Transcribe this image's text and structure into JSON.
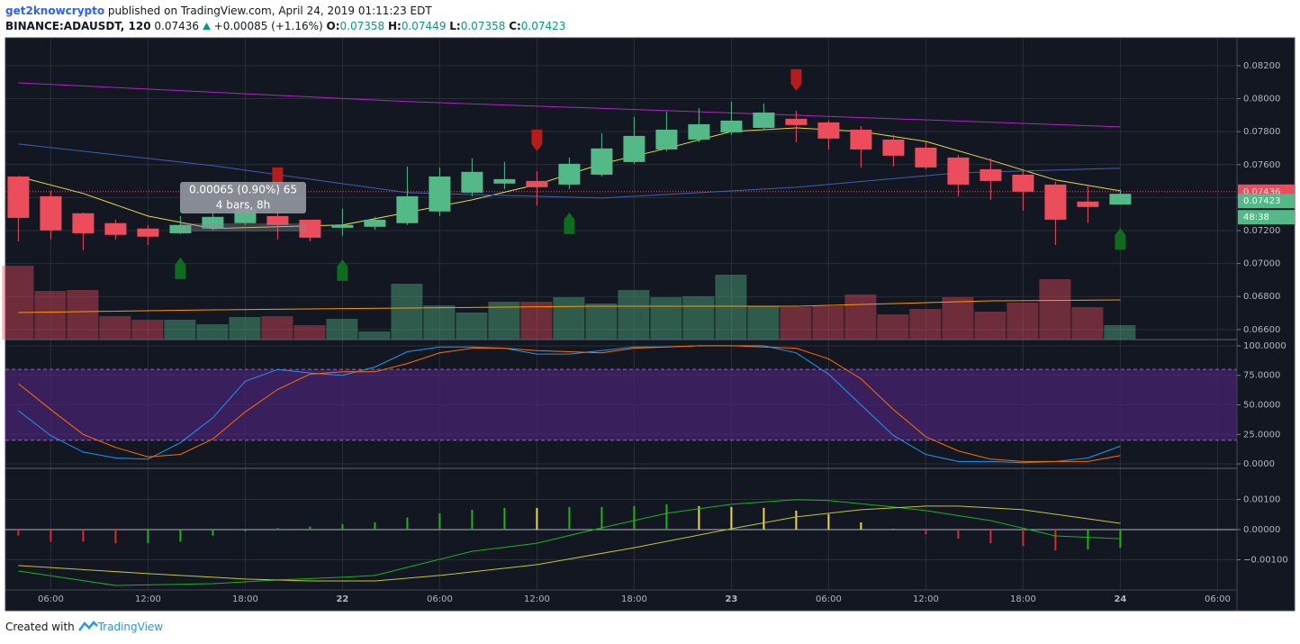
{
  "header": {
    "author": "get2knowcrypto",
    "published": "published on TradingView.com, April 24, 2019 01:11:23 EDT",
    "symbol": "BINANCE:ADAUSDT, 120",
    "price": "0.07436",
    "change": "+0.00085 (+1.16%)",
    "open_label": "O:",
    "open": "0.07358",
    "high_label": "H:",
    "high": "0.07449",
    "low_label": "L:",
    "low": "0.07358",
    "close_label": "C:",
    "close": "0.07423"
  },
  "measure": {
    "change": "0.00065 (0.90%) 65",
    "span": "4 bars, 8h"
  },
  "footer": {
    "created": "Created with",
    "brand": "TradingView"
  },
  "chart_data": [
    {
      "type": "candlestick",
      "xlim": [
        -0.4,
        37.6
      ],
      "ylim": [
        0.06539,
        0.08369
      ],
      "yticks": [
        {
          "value": 0.082,
          "label": "0.08200"
        },
        {
          "value": 0.08,
          "label": "0.08000"
        },
        {
          "value": 0.078,
          "label": "0.07800"
        },
        {
          "value": 0.076,
          "label": "0.07600"
        },
        {
          "value": 0.074,
          "label": "0.07400"
        },
        {
          "value": 0.072,
          "label": "0.07200"
        },
        {
          "value": 0.07,
          "label": "0.07000"
        },
        {
          "value": 0.068,
          "label": "0.06800"
        },
        {
          "value": 0.066,
          "label": "0.06600"
        }
      ],
      "up_color": "#53b987",
      "down_color": "#eb4d5c",
      "open": [
        0.07528,
        0.07408,
        0.07305,
        0.07245,
        0.07212,
        0.07184,
        0.07212,
        0.07245,
        0.07288,
        0.07266,
        0.07217,
        0.07223,
        0.07245,
        0.07316,
        0.0743,
        0.07485,
        0.07501,
        0.07479,
        0.07539,
        0.07616,
        0.07692,
        0.07752,
        0.07796,
        0.07823,
        0.07878,
        0.07856,
        0.07812,
        0.07752,
        0.07703,
        0.07643,
        0.07572,
        0.07539,
        0.07479,
        0.07376,
        0.07358
      ],
      "high": [
        0.07528,
        0.07441,
        0.0731,
        0.07266,
        0.07234,
        0.07288,
        0.07316,
        0.0737,
        0.07332,
        0.07266,
        0.07332,
        0.07283,
        0.07588,
        0.07583,
        0.07638,
        0.07616,
        0.07561,
        0.07643,
        0.07791,
        0.07889,
        0.07922,
        0.07943,
        0.07982,
        0.07971,
        0.07927,
        0.07867,
        0.07834,
        0.0778,
        0.07736,
        0.07659,
        0.07638,
        0.07561,
        0.07496,
        0.07479,
        0.07449
      ],
      "low": [
        0.07135,
        0.07146,
        0.07081,
        0.07146,
        0.07113,
        0.07179,
        0.07201,
        0.07234,
        0.07146,
        0.07135,
        0.07168,
        0.07206,
        0.07234,
        0.07288,
        0.07408,
        0.07452,
        0.07354,
        0.07452,
        0.07528,
        0.07605,
        0.07681,
        0.07736,
        0.0778,
        0.07812,
        0.07736,
        0.07692,
        0.07583,
        0.07588,
        0.07572,
        0.07408,
        0.07386,
        0.07321,
        0.07113,
        0.07245,
        0.07358
      ],
      "close": [
        0.07277,
        0.07201,
        0.07184,
        0.07174,
        0.07163,
        0.07234,
        0.07283,
        0.07332,
        0.07234,
        0.07157,
        0.07234,
        0.07266,
        0.07408,
        0.07528,
        0.07556,
        0.07512,
        0.07463,
        0.07605,
        0.07698,
        0.07774,
        0.07812,
        0.07845,
        0.07867,
        0.07916,
        0.0784,
        0.07758,
        0.07692,
        0.07654,
        0.07583,
        0.07479,
        0.07501,
        0.07436,
        0.07266,
        0.07343,
        0.07423
      ],
      "volume_ylim": [
        0,
        335
      ],
      "volume": [
        82,
        54,
        55,
        26,
        22,
        22,
        17,
        25,
        26,
        16,
        23,
        9,
        62,
        38,
        30,
        42,
        42,
        47,
        40,
        55,
        47,
        48,
        72,
        37,
        36,
        37,
        50,
        28,
        34,
        47,
        31,
        41,
        67,
        36,
        16
      ],
      "volume_ma": {
        "color": "#ff9800",
        "x": [
          0,
          6,
          12,
          18,
          24,
          30,
          34
        ],
        "values": [
          30,
          33,
          35,
          37,
          37,
          43,
          44
        ]
      },
      "overlays": [
        {
          "color": "#e6d84a",
          "x": [
            0,
            2,
            4,
            6,
            8,
            10,
            12,
            14,
            16,
            18,
            20,
            22,
            24,
            26,
            28,
            30,
            32,
            34
          ],
          "values": [
            0.07528,
            0.07425,
            0.07288,
            0.07212,
            0.07223,
            0.07234,
            0.0731,
            0.07386,
            0.07479,
            0.07605,
            0.07698,
            0.07801,
            0.07823,
            0.07801,
            0.07741,
            0.07627,
            0.07507,
            0.07441
          ]
        },
        {
          "color": "#3f5fb0",
          "x": [
            0,
            6,
            12,
            18,
            24,
            29,
            34
          ],
          "values": [
            0.07725,
            0.07594,
            0.0743,
            0.07397,
            0.07463,
            0.0755,
            0.07578
          ]
        },
        {
          "color": "#b025c4",
          "x": [
            0,
            12,
            24,
            34
          ],
          "values": [
            0.08096,
            0.07982,
            0.079,
            0.07829
          ]
        }
      ],
      "sell_signals": [
        8,
        16,
        24
      ],
      "buy_signals": [
        5,
        10,
        17,
        34
      ],
      "last_price": {
        "value": 0.07436,
        "label": "0.07436"
      },
      "close_tag": {
        "value": 0.07423,
        "label": "0.07423"
      },
      "countdown": "48:38"
    },
    {
      "type": "line",
      "xlim": [
        -0.4,
        37.6
      ],
      "ylim": [
        -3.8,
        105.3
      ],
      "yticks": [
        {
          "value": 100,
          "label": "100.0000"
        },
        {
          "value": 75,
          "label": "75.0000"
        },
        {
          "value": 50,
          "label": "50.0000"
        },
        {
          "value": 25,
          "label": "25.0000"
        },
        {
          "value": 0,
          "label": "0.0000"
        }
      ],
      "band": [
        20,
        80
      ],
      "band_color": "#4a2575",
      "series": [
        {
          "color": "#2196f3",
          "values": [
            45,
            24,
            10,
            5,
            4,
            18,
            39,
            70,
            80,
            77,
            75,
            82,
            95,
            99,
            99,
            98,
            93,
            93,
            96,
            99,
            99,
            100,
            100,
            100,
            94,
            76,
            50,
            24,
            8,
            2,
            2,
            1,
            2,
            5,
            15
          ]
        },
        {
          "color": "#ff6d00",
          "values": [
            68,
            46,
            25,
            14,
            6,
            8,
            21,
            44,
            63,
            76,
            78,
            78,
            85,
            94,
            98,
            98,
            96,
            95,
            94,
            98,
            99,
            100,
            100,
            99,
            98,
            89,
            72,
            46,
            23,
            11,
            4,
            2,
            2,
            2,
            7
          ]
        }
      ]
    },
    {
      "type": "macd",
      "xlim": [
        -0.4,
        37.6
      ],
      "ylim": [
        -0.002,
        0.00203
      ],
      "yticks": [
        {
          "value": 0.001,
          "label": "0.00100"
        },
        {
          "value": 0,
          "label": "0.00000"
        },
        {
          "value": -0.001,
          "label": "−0.00100"
        }
      ],
      "xticks": [
        {
          "value": 1,
          "label": "06:00"
        },
        {
          "value": 4,
          "label": "12:00"
        },
        {
          "value": 7,
          "label": "18:00"
        },
        {
          "value": 10,
          "label": "22"
        },
        {
          "value": 13,
          "label": "06:00"
        },
        {
          "value": 16,
          "label": "12:00"
        },
        {
          "value": 19,
          "label": "18:00"
        },
        {
          "value": 22,
          "label": "23"
        },
        {
          "value": 25,
          "label": "06:00"
        },
        {
          "value": 28,
          "label": "12:00"
        },
        {
          "value": 31,
          "label": "18:00"
        },
        {
          "value": 34,
          "label": "24"
        },
        {
          "value": 37,
          "label": "06:00"
        }
      ],
      "histogram": {
        "values": [
          -0.0002,
          -0.0004,
          -0.0004,
          -0.00045,
          -0.00045,
          -0.0004,
          -0.0002,
          -5e-05,
          5e-05,
          0.0001,
          0.00018,
          0.00024,
          0.0004,
          0.00054,
          0.00066,
          0.00072,
          0.00072,
          0.00075,
          0.00075,
          0.00078,
          0.00084,
          0.00078,
          0.00075,
          0.00072,
          0.00063,
          0.00051,
          0.00024,
          2e-05,
          -0.00015,
          -0.0003,
          -0.00045,
          -0.00054,
          -0.00069,
          -0.00066,
          -0.0006
        ],
        "colors": [
          "#d32f2f",
          "#d32f2f",
          "#d32f2f",
          "#d32f2f",
          "#1db11d",
          "#1db11d",
          "#1db11d",
          "#1db11d",
          "#1db11d",
          "#1db11d",
          "#1db11d",
          "#1db11d",
          "#1db11d",
          "#1db11d",
          "#1db11d",
          "#1db11d",
          "#e6d84a",
          "#1db11d",
          "#1db11d",
          "#1db11d",
          "#1db11d",
          "#e6d84a",
          "#e6d84a",
          "#e6d84a",
          "#e6d84a",
          "#e6d84a",
          "#e6d84a",
          "#e6d84a",
          "#d32f2f",
          "#d32f2f",
          "#d32f2f",
          "#d32f2f",
          "#d32f2f",
          "#1db11d",
          "#1db11d"
        ]
      },
      "series": [
        {
          "color": "#1db11d",
          "x": [
            0,
            3,
            6,
            8,
            10,
            11,
            12,
            14,
            16,
            18,
            20,
            22,
            24,
            25,
            27,
            28,
            30,
            32,
            34
          ],
          "values": [
            -0.00137,
            -0.00185,
            -0.00179,
            -0.00167,
            -0.00158,
            -0.00152,
            -0.00125,
            -0.00072,
            -0.00045,
            6e-05,
            0.00054,
            0.00084,
            0.00099,
            0.00096,
            0.00075,
            0.00063,
            0.0003,
            -0.00021,
            -0.0003
          ]
        },
        {
          "color": "#c6c33a",
          "x": [
            0,
            4,
            7,
            9,
            11,
            13,
            16,
            19,
            22,
            24,
            26,
            28,
            29,
            31,
            34
          ],
          "values": [
            -0.00119,
            -0.00146,
            -0.00164,
            -0.0017,
            -0.0017,
            -0.00152,
            -0.00116,
            -0.0006,
            3e-05,
            0.00042,
            0.00066,
            0.00078,
            0.00078,
            0.00066,
            0.00021
          ]
        }
      ]
    }
  ]
}
